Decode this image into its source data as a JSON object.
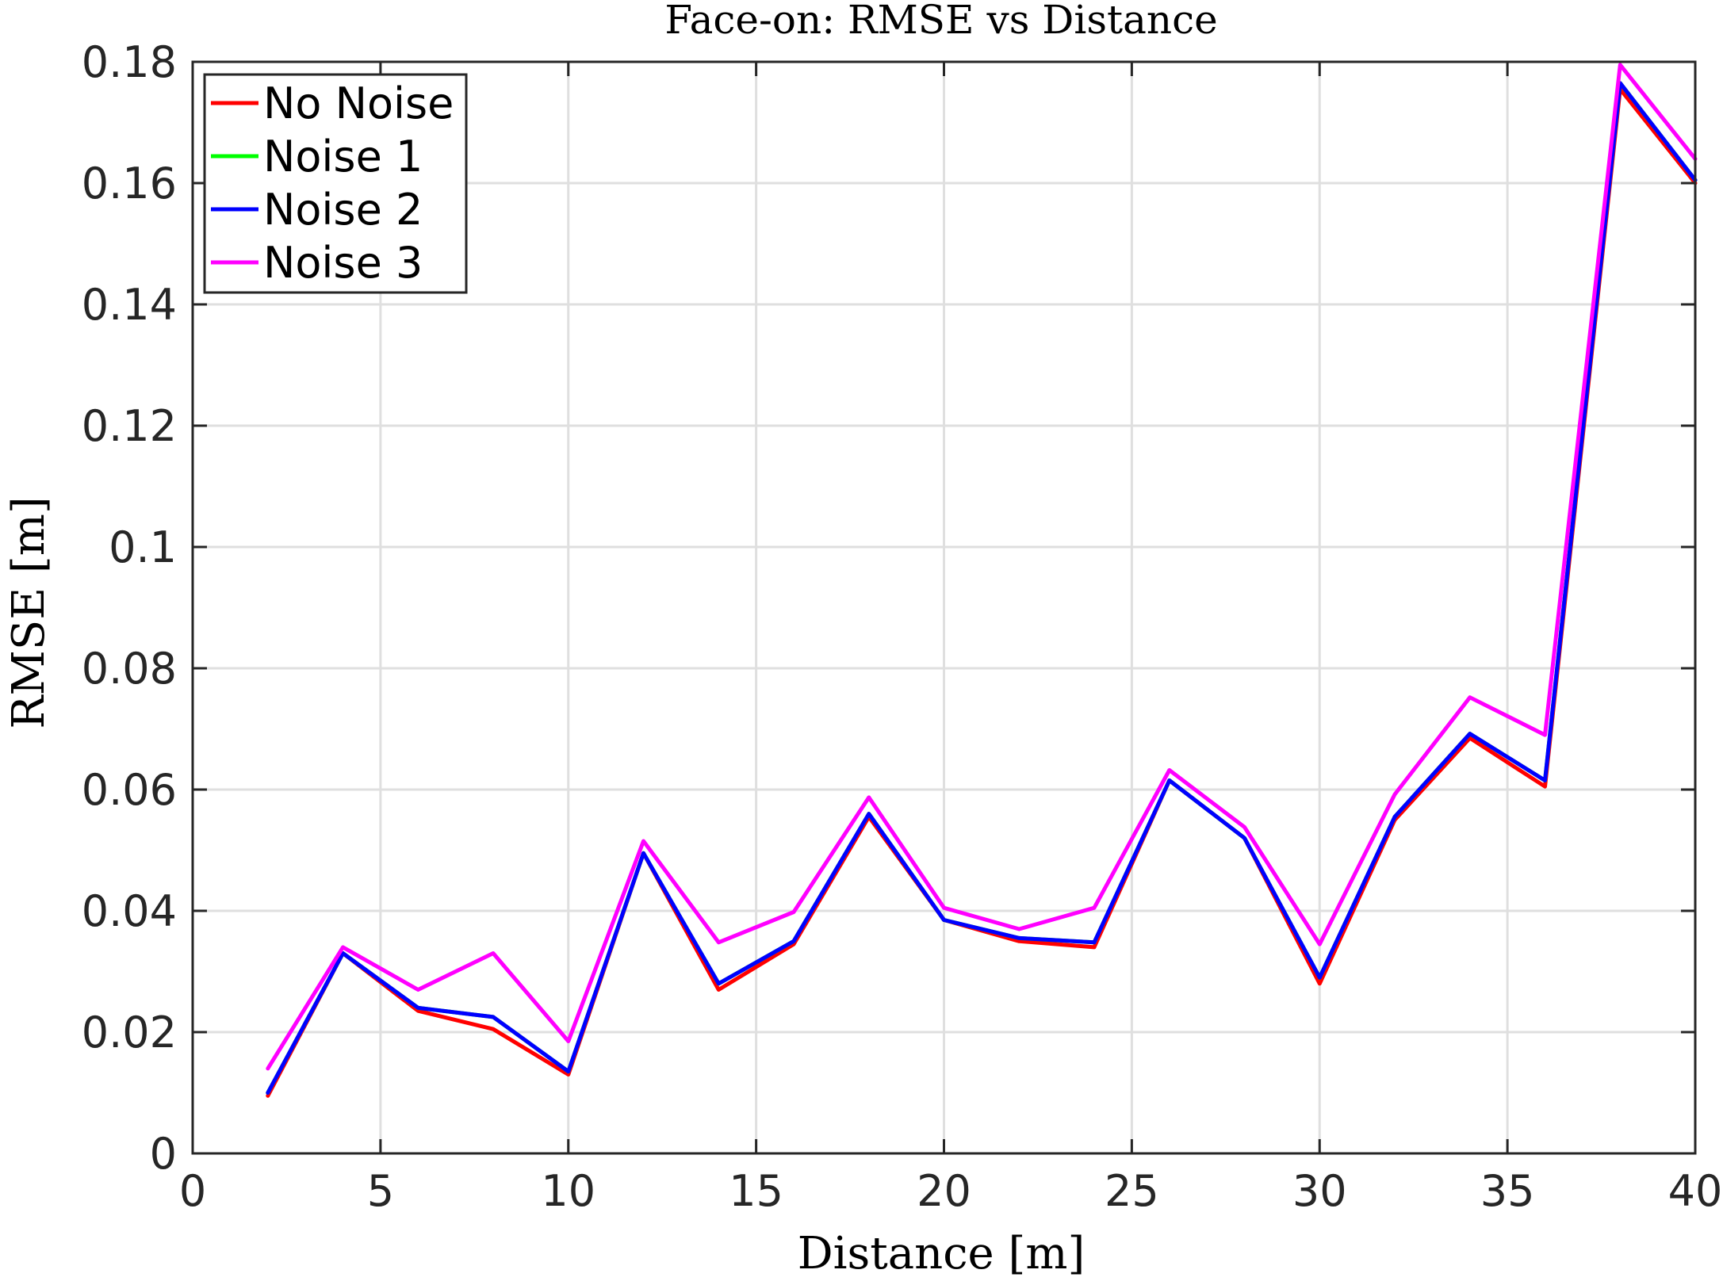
{
  "chart_data": {
    "type": "line",
    "title": "Face-on: RMSE vs Distance",
    "xlabel": "Distance [m]",
    "ylabel": "RMSE [m]",
    "xlim": [
      0,
      40
    ],
    "ylim": [
      0,
      0.18
    ],
    "xticks": [
      0,
      5,
      10,
      15,
      20,
      25,
      30,
      35,
      40
    ],
    "xtick_labels": [
      "0",
      "5",
      "10",
      "15",
      "20",
      "25",
      "30",
      "35",
      "40"
    ],
    "yticks": [
      0,
      0.02,
      0.04,
      0.06,
      0.08,
      0.1,
      0.12,
      0.14,
      0.16,
      0.18
    ],
    "ytick_labels": [
      "0",
      "0.02",
      "0.04",
      "0.06",
      "0.08",
      "0.1",
      "0.12",
      "0.14",
      "0.16",
      "0.18"
    ],
    "grid": true,
    "legend_position": "top-left",
    "x": [
      2,
      4,
      6,
      8,
      10,
      12,
      14,
      16,
      18,
      20,
      22,
      24,
      26,
      28,
      30,
      32,
      34,
      36,
      38,
      40
    ],
    "series": [
      {
        "name": "No Noise",
        "color": "#ff0000",
        "values": [
          0.0095,
          0.033,
          0.0235,
          0.0205,
          0.013,
          0.0495,
          0.027,
          0.0345,
          0.0555,
          0.0385,
          0.035,
          0.034,
          0.0615,
          0.052,
          0.028,
          0.055,
          0.0685,
          0.0605,
          0.1755,
          0.16
        ]
      },
      {
        "name": "Noise 1",
        "color": "#00ff00",
        "values": [
          0.01,
          0.033,
          0.024,
          0.0225,
          0.0135,
          0.0495,
          0.028,
          0.035,
          0.056,
          0.0385,
          0.0355,
          0.0348,
          0.0615,
          0.052,
          0.029,
          0.0555,
          0.0692,
          0.0615,
          0.1765,
          0.1605
        ]
      },
      {
        "name": "Noise 2",
        "color": "#0000ff",
        "values": [
          0.01,
          0.033,
          0.024,
          0.0225,
          0.0135,
          0.0495,
          0.028,
          0.035,
          0.056,
          0.0385,
          0.0355,
          0.0348,
          0.0615,
          0.052,
          0.029,
          0.0555,
          0.0692,
          0.0615,
          0.1765,
          0.1605
        ]
      },
      {
        "name": "Noise 3",
        "color": "#ff00ff",
        "values": [
          0.014,
          0.034,
          0.027,
          0.033,
          0.0185,
          0.0515,
          0.0348,
          0.0398,
          0.0587,
          0.0405,
          0.037,
          0.0405,
          0.0632,
          0.0538,
          0.0345,
          0.0592,
          0.0752,
          0.069,
          0.1795,
          0.164
        ]
      }
    ]
  }
}
